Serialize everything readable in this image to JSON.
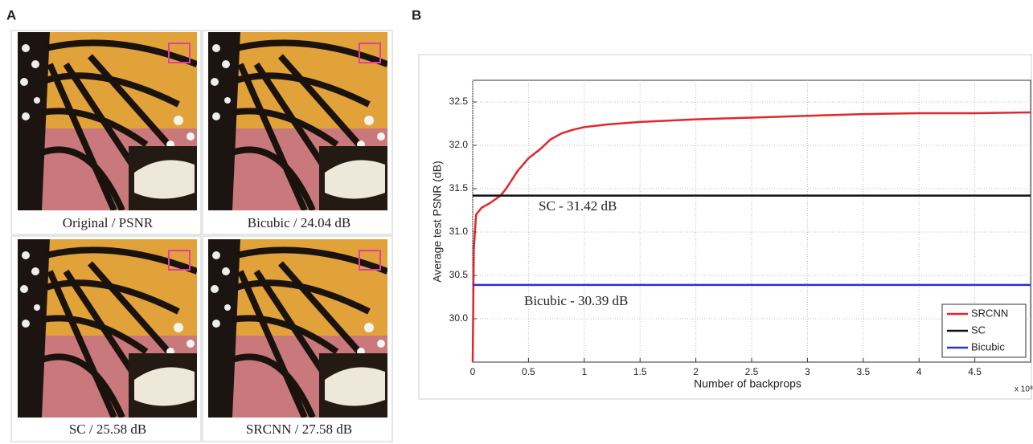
{
  "figure": {
    "panel_a": "A",
    "panel_b": "B",
    "captions": [
      "Original / PSNR",
      "Bicubic / 24.04 dB",
      "SC / 25.58 dB",
      "SRCNN / 27.58 dB"
    ]
  },
  "chart_data": {
    "type": "line",
    "x_label": "Number of backprops",
    "y_label": "Average test PSNR (dB)",
    "x_multiplier": "x 10⁸",
    "annotations": [
      "SC - 31.42 dB",
      "Bicubic - 30.39 dB"
    ],
    "xlim": [
      0,
      5
    ],
    "ylim": [
      29.5,
      32.75
    ],
    "xticks": [
      0,
      0.5,
      1,
      1.5,
      2,
      2.5,
      3,
      3.5,
      4,
      4.5
    ],
    "yticks": [
      {
        "value": 30,
        "label": "30.0"
      },
      30.5,
      {
        "value": 31,
        "label": "31.0"
      },
      31.5,
      {
        "value": 32,
        "label": "32.0"
      },
      32.5
    ],
    "grid": true,
    "legend": "lower right",
    "series": [
      {
        "name": "SRCNN",
        "color": "#e3262b",
        "x": [
          0,
          0.01,
          0.03,
          0.08,
          0.15,
          0.25,
          0.3,
          0.4,
          0.5,
          0.6,
          0.7,
          0.8,
          0.9,
          1.0,
          1.2,
          1.5,
          2,
          2.5,
          3,
          3.5,
          4,
          4.5,
          5
        ],
        "values": [
          29.5,
          30.8,
          31.2,
          31.28,
          31.33,
          31.42,
          31.5,
          31.7,
          31.85,
          31.95,
          32.07,
          32.14,
          32.18,
          32.21,
          32.24,
          32.27,
          32.3,
          32.32,
          32.34,
          32.36,
          32.37,
          32.37,
          32.38
        ]
      },
      {
        "name": "SC",
        "color": "#111111",
        "x": [
          0,
          5
        ],
        "values": [
          31.42,
          31.42
        ]
      },
      {
        "name": "Bicubic",
        "color": "#2a2ee0",
        "x": [
          0,
          5
        ],
        "values": [
          30.39,
          30.39
        ]
      }
    ]
  }
}
